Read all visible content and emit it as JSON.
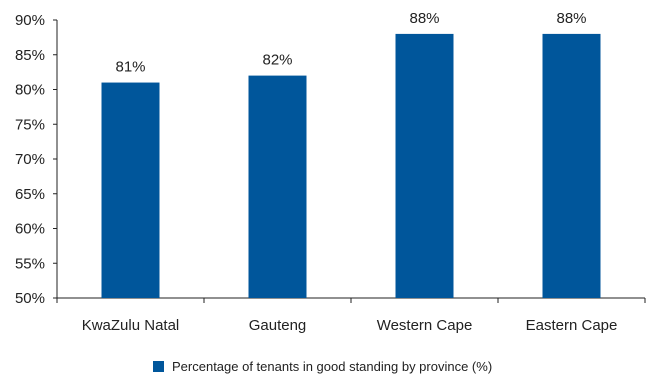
{
  "chart_data": {
    "type": "bar",
    "categories": [
      "KwaZulu Natal",
      "Gauteng",
      "Western Cape",
      "Eastern Cape"
    ],
    "values": [
      81,
      82,
      88,
      88
    ],
    "value_labels": [
      "81%",
      "82%",
      "88%",
      "88%"
    ],
    "ylim": [
      50,
      90
    ],
    "yticks": [
      50,
      55,
      60,
      65,
      70,
      75,
      80,
      85,
      90
    ],
    "ytick_labels": [
      "50%",
      "55%",
      "60%",
      "65%",
      "70%",
      "75%",
      "80%",
      "85%",
      "90%"
    ],
    "legend": {
      "label": "Percentage of tenants in good standing by province (%)",
      "placement": "bottom-center"
    },
    "bar_color": "#00569B",
    "grid": false
  }
}
